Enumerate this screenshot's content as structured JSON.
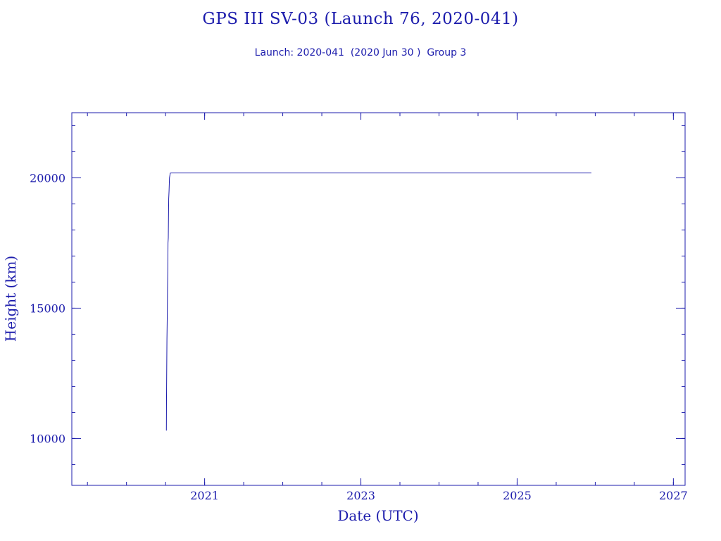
{
  "chart_data": {
    "type": "line",
    "title": "GPS III SV-03 (Launch 76, 2020-041)",
    "subtitle": "Launch: 2020-041  (2020 Jun 30 )  Group 3",
    "xlabel": "Date (UTC)",
    "ylabel": "Height (km)",
    "xlim": [
      2019.3,
      2027.15
    ],
    "ylim": [
      8200,
      22500
    ],
    "x_ticks": [
      2021,
      2023,
      2025,
      2027
    ],
    "x_minor_step": 0.5,
    "y_ticks": [
      10000,
      15000,
      20000
    ],
    "y_minor_step": 1000,
    "grid": false,
    "colors": {
      "axes": "#1c1cac",
      "line": "#1c1cac"
    },
    "series": [
      {
        "x": [
          2020.51,
          2020.512,
          2020.515,
          2020.518,
          2020.521,
          2020.525,
          2020.528,
          2020.531,
          2020.535,
          2020.54,
          2020.545,
          2020.55,
          2020.56,
          2020.57,
          2020.6,
          2021.0,
          2022.0,
          2023.0,
          2024.0,
          2025.0,
          2025.95
        ],
        "y": [
          10300,
          11600,
          12700,
          13800,
          14600,
          15700,
          16400,
          17500,
          17700,
          19200,
          19500,
          20000,
          20180,
          20190,
          20190,
          20190,
          20190,
          20190,
          20190,
          20190,
          20190
        ]
      }
    ]
  }
}
